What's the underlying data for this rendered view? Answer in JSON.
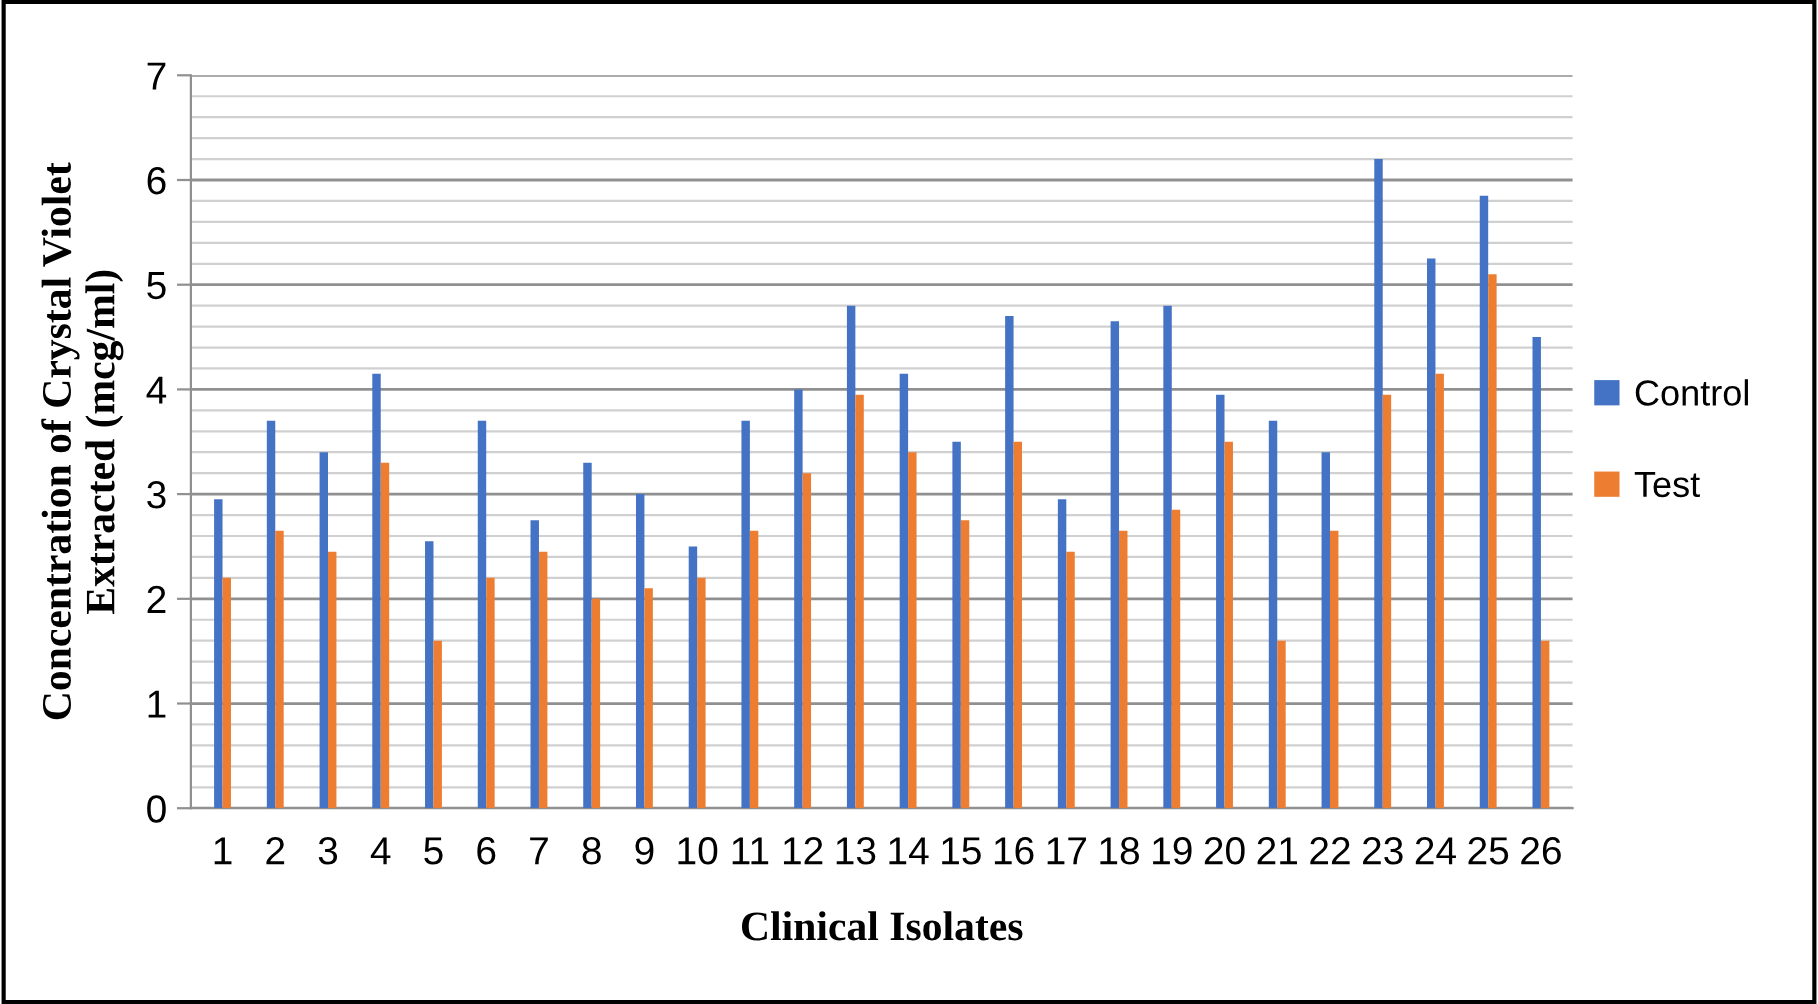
{
  "chart_data": {
    "type": "bar",
    "xlabel": "Clinical Isolates",
    "ylabel": "Concentration of Crystal Violet\nExtracted (mcg/ml)",
    "categories": [
      "1",
      "2",
      "3",
      "4",
      "5",
      "6",
      "7",
      "8",
      "9",
      "10",
      "11",
      "12",
      "13",
      "14",
      "15",
      "16",
      "17",
      "18",
      "19",
      "20",
      "21",
      "22",
      "23",
      "24",
      "25",
      "26"
    ],
    "series": [
      {
        "name": "Control",
        "color": "#4472c4",
        "values": [
          2.95,
          3.7,
          3.4,
          4.15,
          2.55,
          3.7,
          2.75,
          3.3,
          3.0,
          2.5,
          3.7,
          4.0,
          4.8,
          4.15,
          3.5,
          4.7,
          2.95,
          4.65,
          4.8,
          3.95,
          3.7,
          3.4,
          6.2,
          5.25,
          5.85,
          4.5
        ]
      },
      {
        "name": "Test",
        "color": "#ed7d31",
        "values": [
          2.2,
          2.65,
          2.45,
          3.3,
          1.6,
          2.2,
          2.45,
          2.0,
          2.1,
          2.2,
          2.65,
          3.2,
          3.95,
          3.4,
          2.75,
          3.5,
          2.45,
          2.65,
          2.85,
          3.5,
          1.6,
          2.65,
          3.95,
          4.15,
          5.1,
          1.6
        ]
      }
    ],
    "ylim": [
      0,
      7
    ],
    "yticks": [
      0,
      1,
      2,
      3,
      4,
      5,
      6,
      7
    ],
    "grid": "y",
    "legend": "right"
  }
}
